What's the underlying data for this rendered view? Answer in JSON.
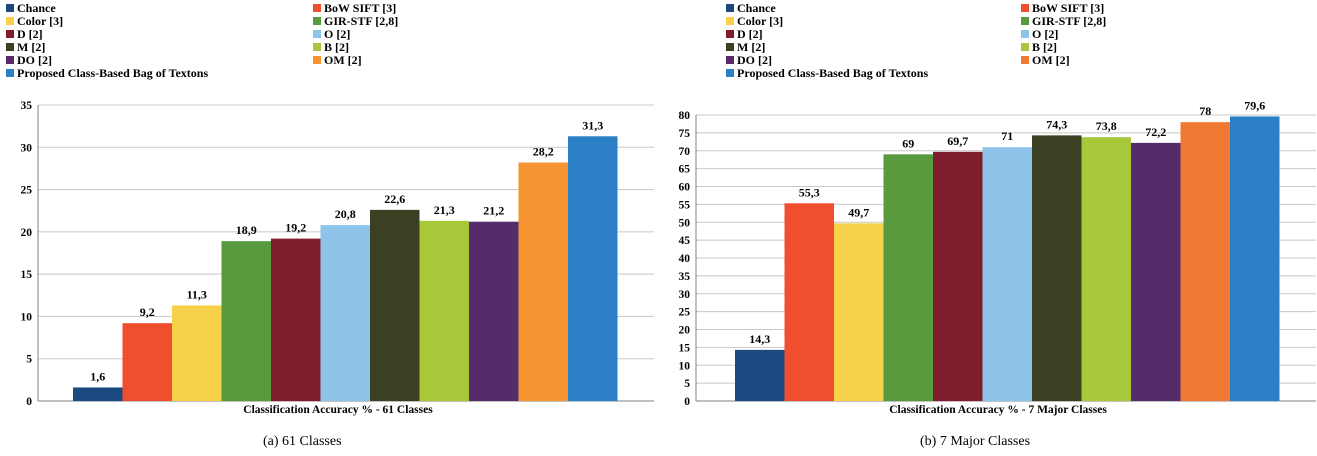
{
  "charts": [
    {
      "id": "a",
      "caption": "(a) 61 Classes",
      "chart_data": {
        "type": "bar",
        "xlabel": "Classification Accuracy % - 61 Classes",
        "ylabel": "",
        "ylim": [
          0,
          35
        ],
        "yticks": [
          0,
          5,
          10,
          15,
          20,
          25,
          30,
          35
        ],
        "grid": true,
        "legend_position": "top",
        "series": [
          {
            "name": "Chance",
            "value": 1.6,
            "label": "1,6",
            "color": "#1a4a80"
          },
          {
            "name": "BoW SIFT [3]",
            "value": 9.2,
            "label": "9,2",
            "color": "#f04e2e"
          },
          {
            "name": "Color [3]",
            "value": 11.3,
            "label": "11,3",
            "color": "#f7d14a"
          },
          {
            "name": "GIR-STF [2,8]",
            "value": 18.9,
            "label": "18,9",
            "color": "#5a9a3e"
          },
          {
            "name": "D [2]",
            "value": 19.2,
            "label": "19,2",
            "color": "#7f1c2d"
          },
          {
            "name": "O [2]",
            "value": 20.8,
            "label": "20,8",
            "color": "#8ec4ea"
          },
          {
            "name": "M [2]",
            "value": 22.6,
            "label": "22,6",
            "color": "#3b4022"
          },
          {
            "name": "B [2]",
            "value": 21.3,
            "label": "21,3",
            "color": "#a8c83a"
          },
          {
            "name": "DO [2]",
            "value": 21.2,
            "label": "21,2",
            "color": "#552b6a"
          },
          {
            "name": "OM [2]",
            "value": 28.2,
            "label": "28,2",
            "color": "#f59431"
          },
          {
            "name": "Proposed Class-Based Bag of Textons",
            "value": 31.3,
            "label": "31,3",
            "color": "#2b7fc4"
          }
        ]
      }
    },
    {
      "id": "b",
      "caption": "(b) 7 Major Classes",
      "chart_data": {
        "type": "bar",
        "xlabel": "Classification Accuracy % - 7 Major Classes",
        "ylabel": "",
        "ylim": [
          0,
          80
        ],
        "yticks": [
          0,
          5,
          10,
          15,
          20,
          25,
          30,
          35,
          40,
          45,
          50,
          55,
          60,
          65,
          70,
          75,
          80
        ],
        "grid": true,
        "legend_position": "top",
        "series": [
          {
            "name": "Chance",
            "value": 14.3,
            "label": "14,3",
            "color": "#1a4a80"
          },
          {
            "name": "BoW SIFT [3]",
            "value": 55.3,
            "label": "55,3",
            "color": "#f04e2e"
          },
          {
            "name": "Color [3]",
            "value": 49.7,
            "label": "49,7",
            "color": "#f7d14a"
          },
          {
            "name": "GIR-STF [2,8]",
            "value": 69,
            "label": "69",
            "color": "#5a9a3e"
          },
          {
            "name": "D [2]",
            "value": 69.7,
            "label": "69,7",
            "color": "#7f1c2d"
          },
          {
            "name": "O [2]",
            "value": 71,
            "label": "71",
            "color": "#8ec4ea"
          },
          {
            "name": "M [2]",
            "value": 74.3,
            "label": "74,3",
            "color": "#3b4022"
          },
          {
            "name": "B [2]",
            "value": 73.8,
            "label": "73,8",
            "color": "#a8c83a"
          },
          {
            "name": "DO [2]",
            "value": 72.2,
            "label": "72,2",
            "color": "#552b6a"
          },
          {
            "name": "OM [2]",
            "value": 78,
            "label": "78",
            "color": "#f07a33"
          },
          {
            "name": "Proposed Class-Based Bag of Textons",
            "value": 79.6,
            "label": "79,6",
            "color": "#2b7fc4"
          }
        ]
      }
    }
  ]
}
